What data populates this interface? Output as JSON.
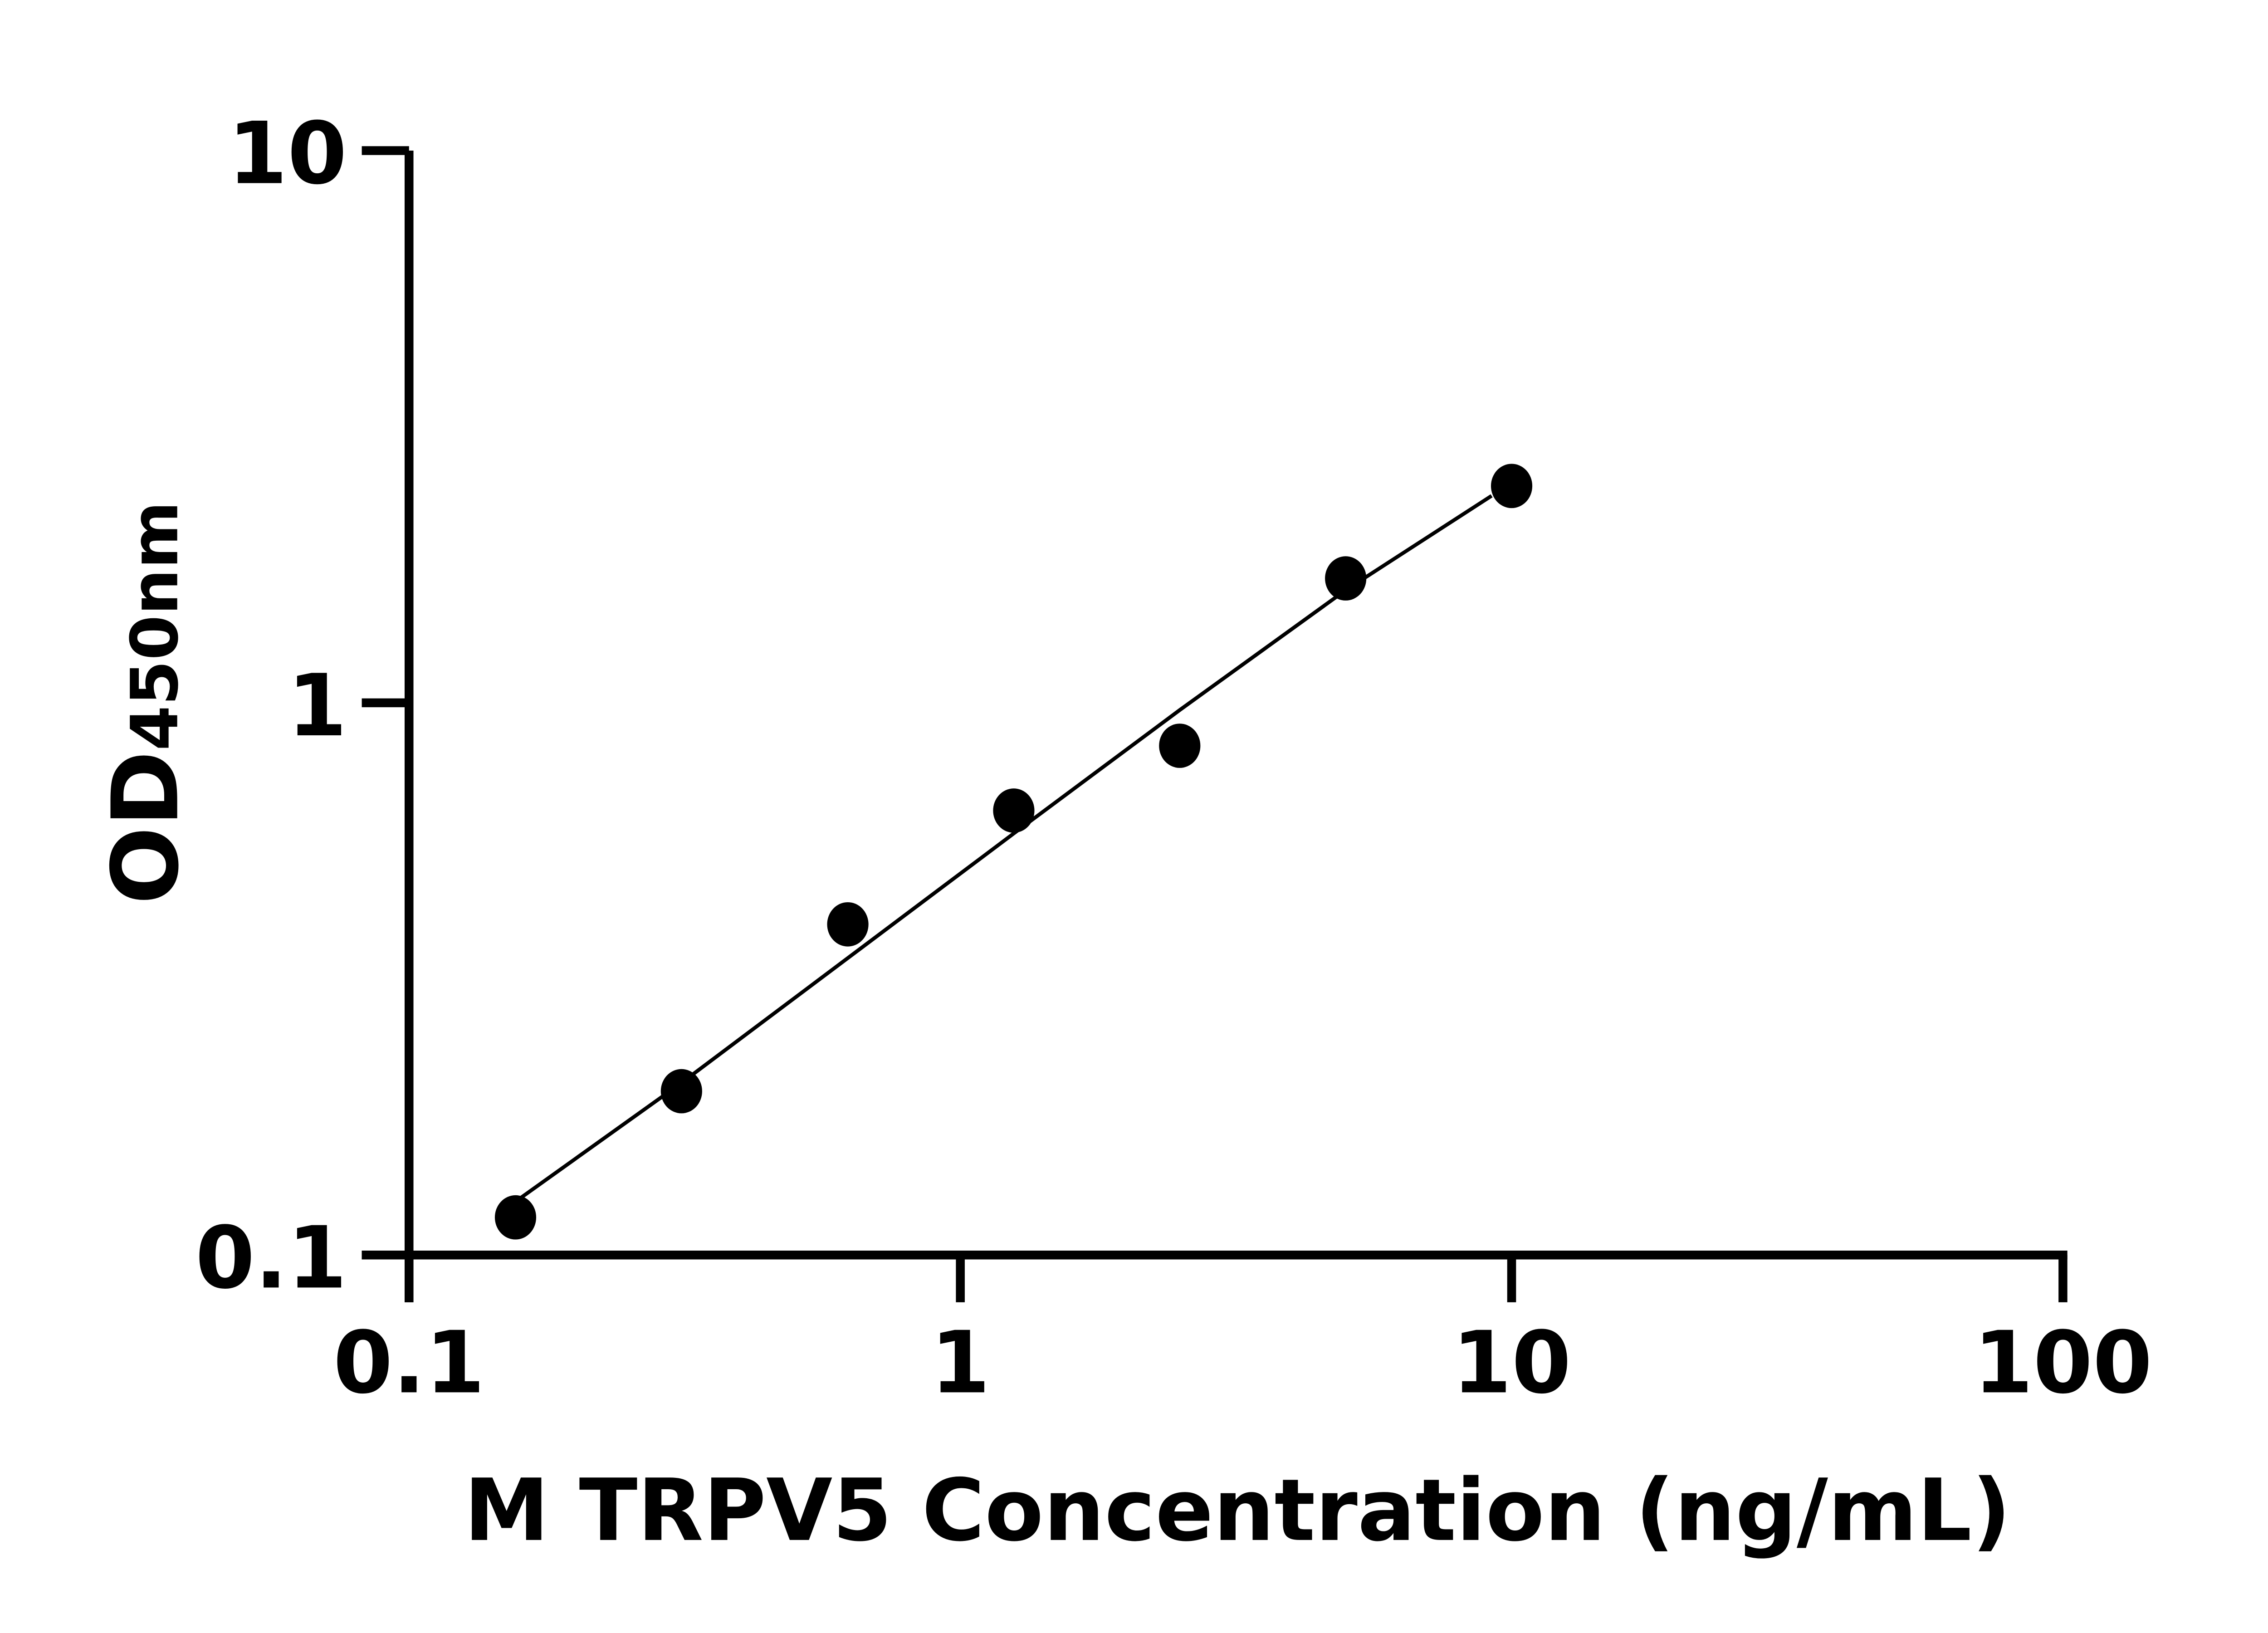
{
  "chart_data": {
    "type": "scatter",
    "title": "",
    "xlabel": "M TRPV5 Concentration (ng/mL)",
    "ylabel_main": "OD",
    "ylabel_sub": "450nm",
    "x_scale": "log",
    "y_scale": "log",
    "xlim": [
      0.1,
      100
    ],
    "ylim": [
      0.1,
      10
    ],
    "x_ticks": [
      0.1,
      1,
      10,
      100
    ],
    "x_tick_labels": [
      "0.1",
      "1",
      "10",
      "100"
    ],
    "y_ticks": [
      0.1,
      1,
      10
    ],
    "y_tick_labels": [
      "0.1",
      "1",
      "10"
    ],
    "grid": false,
    "points": [
      {
        "x": 0.156,
        "y": 0.117
      },
      {
        "x": 0.312,
        "y": 0.198
      },
      {
        "x": 0.625,
        "y": 0.397
      },
      {
        "x": 1.25,
        "y": 0.638
      },
      {
        "x": 2.5,
        "y": 0.836
      },
      {
        "x": 5,
        "y": 1.68
      },
      {
        "x": 10,
        "y": 2.47
      }
    ],
    "fit_line": [
      {
        "x": 0.156,
        "y": 0.125
      },
      {
        "x": 0.312,
        "y": 0.205
      },
      {
        "x": 0.625,
        "y": 0.345
      },
      {
        "x": 1.25,
        "y": 0.58
      },
      {
        "x": 2.5,
        "y": 0.97
      },
      {
        "x": 5,
        "y": 1.6
      },
      {
        "x": 9.2,
        "y": 2.37
      }
    ],
    "colors": {
      "marker": "#000000",
      "line": "#000000",
      "axis": "#000000"
    }
  }
}
